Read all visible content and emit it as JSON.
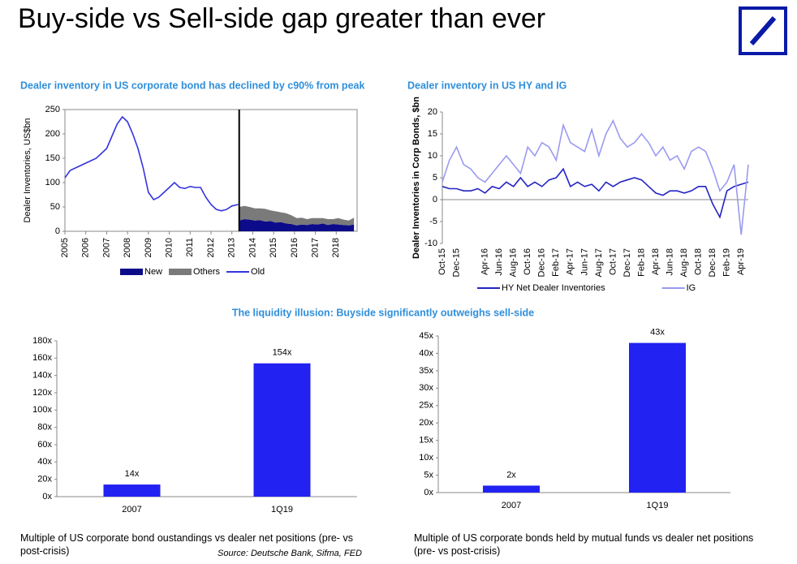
{
  "title": "Buy-side vs Sell-side gap greater than ever",
  "section_heading": "The liquidity illusion: Buyside significantly outweighs sell-side",
  "source": "Source:  Deutsche Bank, Sifma, FED",
  "chart_data": [
    {
      "type": "line",
      "title": "Dealer inventory in US corporate bond has declined by c90% from peak",
      "y_label": "Dealer Inventories, US$bn",
      "xlim": [
        2005,
        2019
      ],
      "xticks": [
        2005,
        2006,
        2007,
        2008,
        2009,
        2010,
        2011,
        2012,
        2013,
        2014,
        2015,
        2016,
        2017,
        2018
      ],
      "ylim": [
        0,
        250
      ],
      "yticks": [
        0,
        50,
        100,
        150,
        200,
        250
      ],
      "series": [
        {
          "name": "New",
          "style": "stacked_area",
          "color": "#0c0c8a",
          "x": [
            2013.35,
            2013.6,
            2013.85,
            2014.1,
            2014.35,
            2014.6,
            2014.85,
            2015.1,
            2015.35,
            2015.6,
            2015.85,
            2016.1,
            2016.35,
            2016.6,
            2016.85,
            2017.1,
            2017.35,
            2017.6,
            2017.85,
            2018.1,
            2018.35,
            2018.6,
            2018.85
          ],
          "values": [
            22,
            25,
            24,
            22,
            23,
            20,
            21,
            18,
            19,
            16,
            15,
            12,
            14,
            13,
            15,
            14,
            16,
            13,
            15,
            14,
            13,
            12,
            14
          ]
        },
        {
          "name": "Others",
          "style": "stacked_area",
          "color": "#7a7a7a",
          "x": [
            2013.35,
            2013.6,
            2013.85,
            2014.1,
            2014.35,
            2014.6,
            2014.85,
            2015.1,
            2015.35,
            2015.6,
            2015.85,
            2016.1,
            2016.35,
            2016.6,
            2016.85,
            2017.1,
            2017.35,
            2017.6,
            2017.85,
            2018.1,
            2018.35,
            2018.6,
            2018.85
          ],
          "values": [
            28,
            27,
            26,
            25,
            24,
            26,
            22,
            23,
            20,
            21,
            18,
            15,
            14,
            12,
            12,
            13,
            11,
            12,
            10,
            13,
            11,
            10,
            14
          ]
        },
        {
          "name": "Old",
          "style": "line",
          "color": "#3434e0",
          "x": [
            2005,
            2005.25,
            2005.5,
            2005.75,
            2006,
            2006.25,
            2006.5,
            2006.75,
            2007,
            2007.25,
            2007.5,
            2007.75,
            2008,
            2008.25,
            2008.5,
            2008.75,
            2009,
            2009.25,
            2009.5,
            2009.75,
            2010,
            2010.25,
            2010.5,
            2010.75,
            2011,
            2011.25,
            2011.5,
            2011.75,
            2012,
            2012.25,
            2012.5,
            2012.75,
            2013,
            2013.3
          ],
          "values": [
            110,
            125,
            130,
            135,
            140,
            145,
            150,
            160,
            170,
            195,
            220,
            235,
            225,
            200,
            170,
            130,
            80,
            65,
            70,
            80,
            90,
            100,
            90,
            88,
            92,
            90,
            90,
            70,
            55,
            45,
            42,
            45,
            52,
            55
          ]
        }
      ]
    },
    {
      "type": "line",
      "title": "Dealer inventory in US HY and IG",
      "y_label": "Dealer Inventories in Corp Bonds, $bn",
      "ylim": [
        -10,
        20
      ],
      "yticks": [
        -10,
        -5,
        0,
        5,
        10,
        15,
        20
      ],
      "categories": [
        "Oct-15",
        null,
        "Dec-15",
        null,
        null,
        null,
        "Apr-16",
        null,
        "Jun-16",
        null,
        "Aug-16",
        null,
        "Oct-16",
        null,
        "Dec-16",
        null,
        "Feb-17",
        null,
        "Apr-17",
        null,
        "Jun-17",
        null,
        "Aug-17",
        null,
        "Oct-17",
        null,
        "Dec-17",
        null,
        "Feb-18",
        null,
        "Apr-18",
        null,
        "Jun-18",
        null,
        "Aug-18",
        null,
        "Oct-18",
        null,
        "Dec-18",
        null,
        "Feb-19",
        null,
        "Apr-19",
        null
      ],
      "series": [
        {
          "name": "HY Net Dealer Inventories",
          "color": "#2424c4",
          "values": [
            3,
            2.5,
            2.5,
            2,
            2,
            2.5,
            1.5,
            3,
            2.5,
            4,
            3,
            5,
            3,
            4,
            3,
            4.5,
            5,
            7,
            3,
            4,
            3,
            3.5,
            2,
            4,
            3,
            4,
            4.5,
            5,
            4.5,
            3,
            1.5,
            1,
            2,
            2,
            1.5,
            2,
            3,
            3,
            -1,
            -4,
            2,
            3,
            3.5,
            4
          ]
        },
        {
          "name": "IG",
          "color": "#9a9af0",
          "values": [
            4,
            9,
            12,
            8,
            7,
            5,
            4,
            6,
            8,
            10,
            8,
            6,
            12,
            10,
            13,
            12,
            9,
            17,
            13,
            12,
            11,
            16,
            10,
            15,
            18,
            14,
            12,
            13,
            15,
            13,
            10,
            12,
            9,
            10,
            7,
            11,
            12,
            11,
            7,
            2,
            4,
            8,
            -8,
            8
          ]
        }
      ]
    },
    {
      "type": "bar",
      "caption": "Multiple of US corporate bond oustandings vs dealer net positions (pre- vs post-crisis)",
      "categories": [
        "2007",
        "1Q19"
      ],
      "values": [
        14,
        154
      ],
      "value_labels": [
        "14x",
        "154x"
      ],
      "color": "#2222f2",
      "ylim": [
        0,
        180
      ],
      "yticks": [
        {
          "value": 0,
          "label": "0x"
        },
        {
          "value": 20,
          "label": "20x"
        },
        {
          "value": 40,
          "label": "40x"
        },
        {
          "value": 60,
          "label": "60x"
        },
        {
          "value": 80,
          "label": "80x"
        },
        {
          "value": 100,
          "label": "100x"
        },
        {
          "value": 120,
          "label": "120x"
        },
        {
          "value": 140,
          "label": "140x"
        },
        {
          "value": 160,
          "label": "160x"
        },
        {
          "value": 180,
          "label": "180x"
        }
      ]
    },
    {
      "type": "bar",
      "caption": "Multiple of US corporate bonds held by mutual funds vs dealer net positions (pre- vs post-crisis)",
      "categories": [
        "2007",
        "1Q19"
      ],
      "values": [
        2,
        43
      ],
      "value_labels": [
        "2x",
        "43x"
      ],
      "color": "#2222f2",
      "ylim": [
        0,
        45
      ],
      "yticks": [
        {
          "value": 0,
          "label": "0x"
        },
        {
          "value": 5,
          "label": "5x"
        },
        {
          "value": 10,
          "label": "10x"
        },
        {
          "value": 15,
          "label": "15x"
        },
        {
          "value": 20,
          "label": "20x"
        },
        {
          "value": 25,
          "label": "25x"
        },
        {
          "value": 30,
          "label": "30x"
        },
        {
          "value": 35,
          "label": "35x"
        },
        {
          "value": 40,
          "label": "40x"
        },
        {
          "value": 45,
          "label": "45x"
        }
      ]
    }
  ]
}
